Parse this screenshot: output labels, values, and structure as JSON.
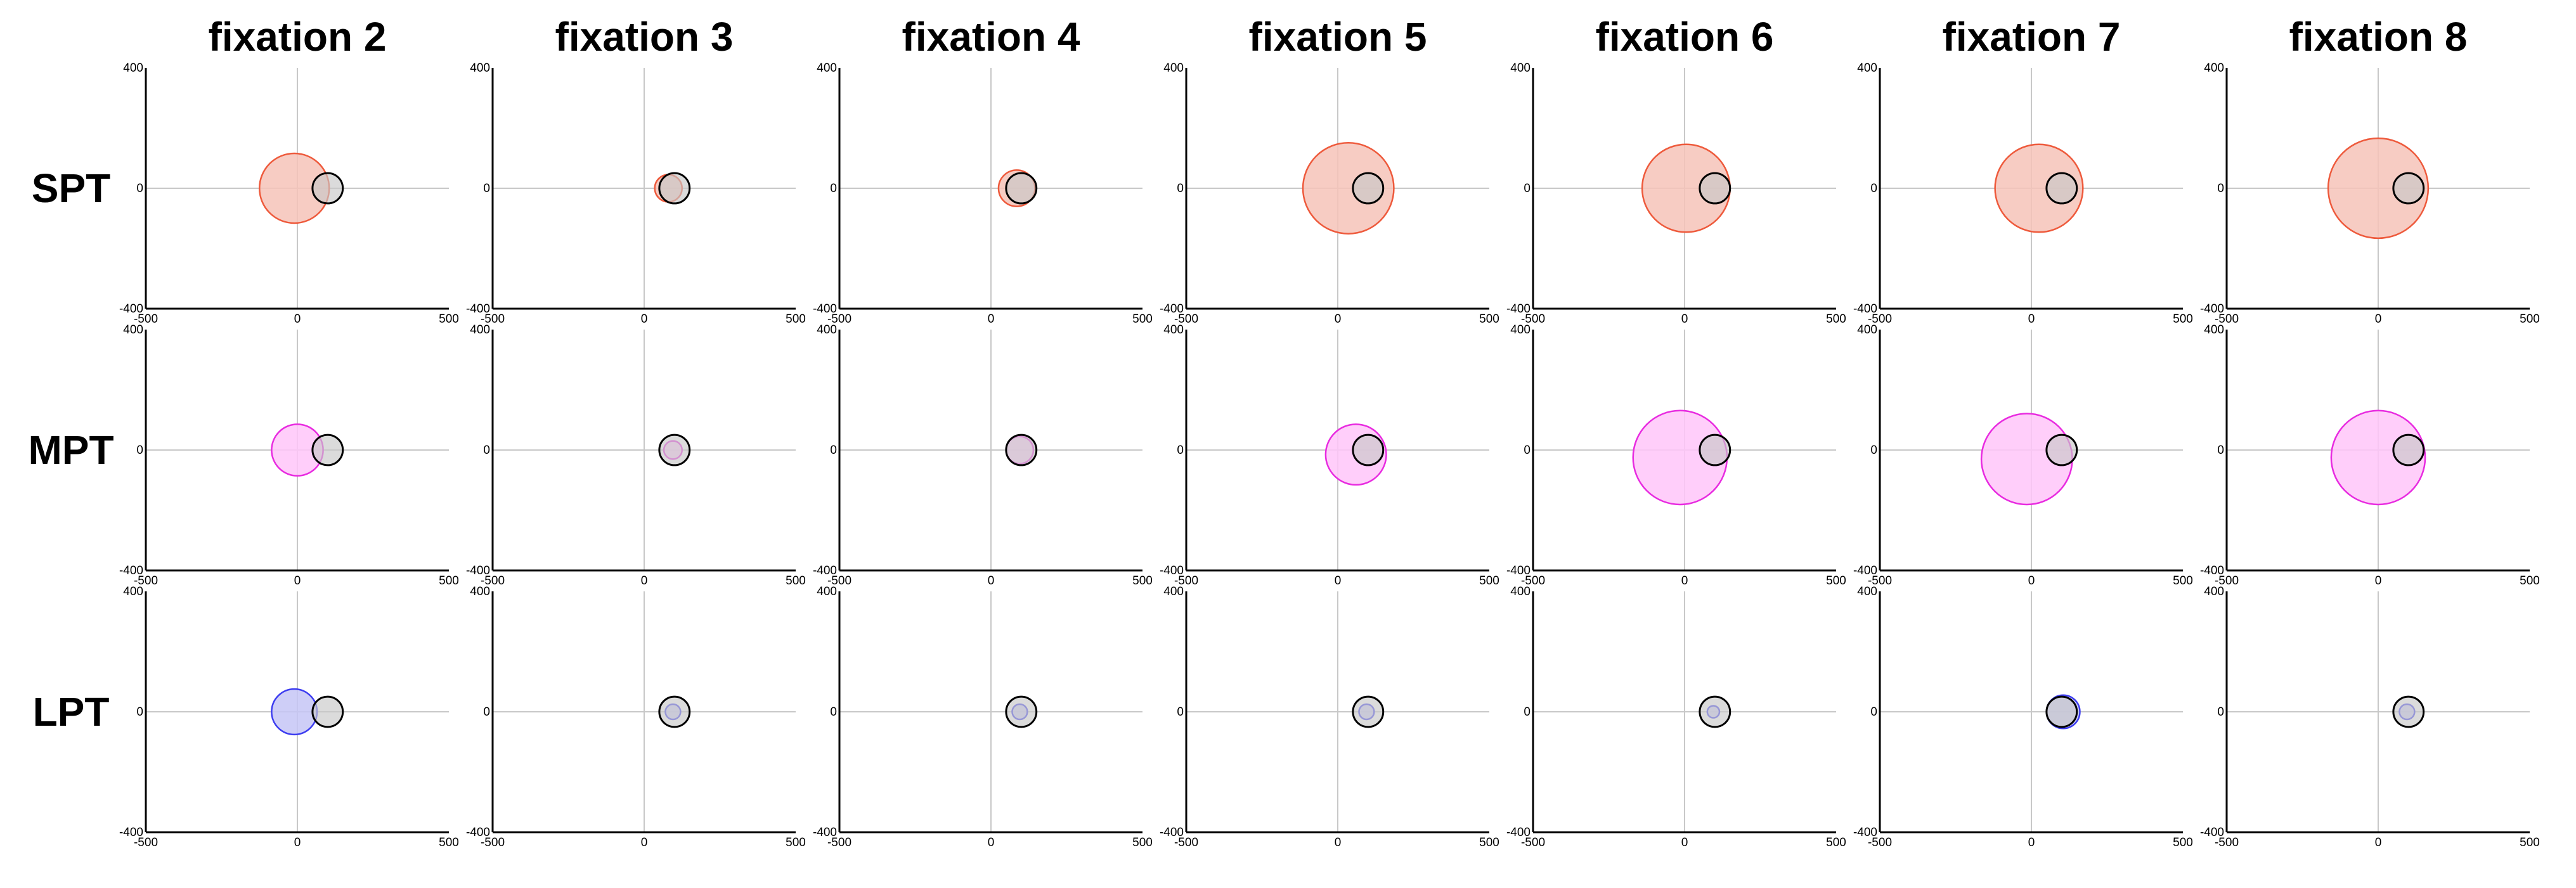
{
  "chart_data": {
    "type": "scatter",
    "layout": "small-multiples grid of bubble plots",
    "columns": [
      "fixation 2",
      "fixation 3",
      "fixation 4",
      "fixation 5",
      "fixation 6",
      "fixation 7",
      "fixation 8"
    ],
    "rows": [
      "SPT",
      "MPT",
      "LPT"
    ],
    "xlim": [
      -500,
      500
    ],
    "ylim": [
      -400,
      400
    ],
    "x_tick_labels": [
      "-500",
      "0",
      "500"
    ],
    "y_tick_labels": [
      "400",
      "0",
      "-400"
    ],
    "grid": "crosshair lines at x=0 and y=0",
    "reference_circle": {
      "x": 100,
      "y": 0,
      "r": 50,
      "fill": "#c8c8c8",
      "stroke": "#000000"
    },
    "row_colors": {
      "SPT": {
        "fill": "#f6c3b8",
        "stroke": "#ee5a3c"
      },
      "MPT": {
        "fill": "#ffc6f9",
        "stroke": "#e82be0"
      },
      "LPT": {
        "fill": "#c6c6f6",
        "stroke": "#3c3cf0"
      }
    },
    "series": [
      {
        "name": "SPT",
        "points": [
          {
            "x": -10,
            "y": 0,
            "r": 115
          },
          {
            "x": 80,
            "y": 0,
            "r": 45
          },
          {
            "x": 85,
            "y": 0,
            "r": 60
          },
          {
            "x": 35,
            "y": 0,
            "r": 150
          },
          {
            "x": 5,
            "y": 0,
            "r": 145
          },
          {
            "x": 25,
            "y": 0,
            "r": 145
          },
          {
            "x": 0,
            "y": 0,
            "r": 165
          }
        ]
      },
      {
        "name": "MPT",
        "points": [
          {
            "x": 0,
            "y": 0,
            "r": 85
          },
          {
            "x": 95,
            "y": 0,
            "r": 30
          },
          {
            "x": 95,
            "y": 0,
            "r": 45
          },
          {
            "x": 60,
            "y": -15,
            "r": 100
          },
          {
            "x": -15,
            "y": -25,
            "r": 155
          },
          {
            "x": -15,
            "y": -30,
            "r": 150
          },
          {
            "x": 0,
            "y": -25,
            "r": 155
          }
        ]
      },
      {
        "name": "LPT",
        "points": [
          {
            "x": -10,
            "y": 0,
            "r": 75
          },
          {
            "x": 95,
            "y": 0,
            "r": 25
          },
          {
            "x": 95,
            "y": 0,
            "r": 25
          },
          {
            "x": 95,
            "y": 0,
            "r": 25
          },
          {
            "x": 95,
            "y": 0,
            "r": 20
          },
          {
            "x": 105,
            "y": 0,
            "r": 55
          },
          {
            "x": 95,
            "y": 0,
            "r": 25
          }
        ]
      }
    ]
  }
}
